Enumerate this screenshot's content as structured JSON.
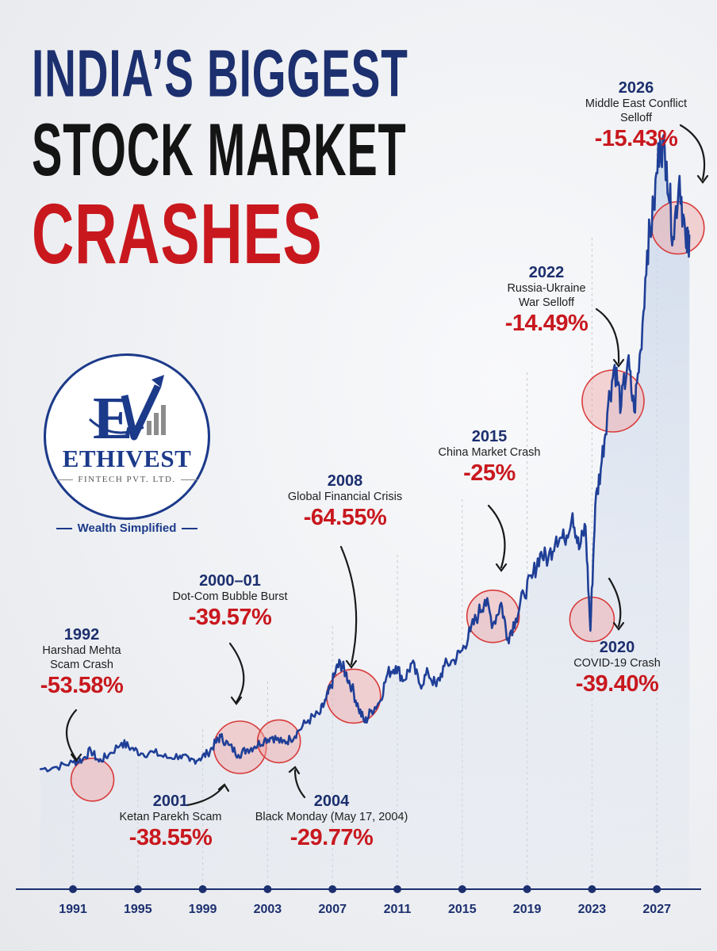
{
  "header": {
    "title_line1": "INDIA’S BIGGEST",
    "title_line2": "STOCK MARKET",
    "title_line3": "CRASHES"
  },
  "logo": {
    "name": "ETHIVEST",
    "subtitle": "FINTECH PVT. LTD.",
    "tagline": "Wealth Simplified"
  },
  "colors": {
    "navy": "#1c2f6e",
    "red": "#c8181e",
    "line": "#1f3f97",
    "bubble": "#f0a5a5"
  },
  "chart_data": {
    "type": "line",
    "title": "INDIA’S BIGGEST STOCK MARKET CRASHES",
    "xlabel": "",
    "ylabel": "",
    "x_ticks": [
      1991,
      1995,
      1999,
      2003,
      2007,
      2011,
      2015,
      2019,
      2023,
      2027
    ],
    "xlim": [
      1989,
      2029
    ],
    "grid": true,
    "series": [
      {
        "x": [
          1989.0,
          1990.0,
          1991.0,
          1991.6,
          1992.1,
          1992.6,
          1993.2,
          1994.0,
          1994.6,
          1995.2,
          1996.0,
          1996.8,
          1997.6,
          1998.2,
          1998.8,
          1999.3,
          1999.8,
          2000.1,
          2000.6,
          2001.2,
          2001.7,
          2002.2,
          2002.8,
          2003.3,
          2003.9,
          2004.4,
          2004.9,
          2005.5,
          2006.2,
          2006.6,
          2006.9,
          2007.2,
          2007.5,
          2007.8,
          2008.2,
          2008.6,
          2009.0,
          2009.4,
          2009.9,
          2010.4,
          2010.9,
          2011.4,
          2011.9,
          2012.4,
          2012.9,
          2013.4,
          2013.9,
          2014.5,
          2015.0,
          2015.5,
          2016.0,
          2016.4,
          2016.9,
          2017.4,
          2017.8,
          2018.3,
          2018.8,
          2019.3,
          2019.8,
          2020.3,
          2020.8,
          2021.3,
          2021.8,
          2022.2,
          2022.6,
          2022.9,
          2023.2,
          2023.6,
          2024.0,
          2024.4,
          2024.8,
          2025.2,
          2025.6,
          2026.0,
          2026.4,
          2026.8,
          2027.2,
          2027.6,
          2028.0,
          2028.4,
          2028.8,
          2029.0
        ],
        "y": [
          3.1,
          3.4,
          4.0,
          4.4,
          5.6,
          4.1,
          5.0,
          6.6,
          5.9,
          5.2,
          5.3,
          4.6,
          4.9,
          4.2,
          4.5,
          5.2,
          6.6,
          7.4,
          6.3,
          5.0,
          5.7,
          6.1,
          7.0,
          7.4,
          6.6,
          7.1,
          8.2,
          9.6,
          10.4,
          12.3,
          14.0,
          16.2,
          17.2,
          15.9,
          14.0,
          11.2,
          9.3,
          10.9,
          12.0,
          15.8,
          16.8,
          14.9,
          17.2,
          14.3,
          15.9,
          14.1,
          16.8,
          17.6,
          18.9,
          21.4,
          23.8,
          25.6,
          22.4,
          25.2,
          20.5,
          23.1,
          26.4,
          28.5,
          31.7,
          31.0,
          34.0,
          33.6,
          37.1,
          32.3,
          35.4,
          21.5,
          38.1,
          44.0,
          51.7,
          56.8,
          51.3,
          57.3,
          50.6,
          58.8,
          72.0,
          77.5,
          86.9,
          83.8,
          73.8,
          81.9,
          72.3,
          74.0
        ]
      }
    ],
    "events": [
      {
        "year": "1992",
        "name_lines": [
          "Harshad Mehta",
          "Scam Crash"
        ],
        "change": "-53.58%"
      },
      {
        "year": "2000–01",
        "name_lines": [
          "Dot-Com Bubble Burst"
        ],
        "change": "-39.57%"
      },
      {
        "year": "2001",
        "name_lines": [
          "Ketan Parekh Scam"
        ],
        "change": "-38.55%"
      },
      {
        "year": "2004",
        "name_lines": [
          "Black Monday (May 17, 2004)"
        ],
        "change": "-29.77%"
      },
      {
        "year": "2008",
        "name_lines": [
          "Global Financial Crisis"
        ],
        "change": "-64.55%"
      },
      {
        "year": "2015",
        "name_lines": [
          "China Market Crash"
        ],
        "change": "-25%"
      },
      {
        "year": "2020",
        "name_lines": [
          "COVID-19 Crash"
        ],
        "change": "-39.40%"
      },
      {
        "year": "2022",
        "name_lines": [
          "Russia-Ukraine",
          "War Selloff"
        ],
        "change": "-14.49%"
      },
      {
        "year": "2026",
        "name_lines": [
          "Middle East Conflict",
          "Selloff"
        ],
        "change": "-15.43%"
      }
    ]
  }
}
